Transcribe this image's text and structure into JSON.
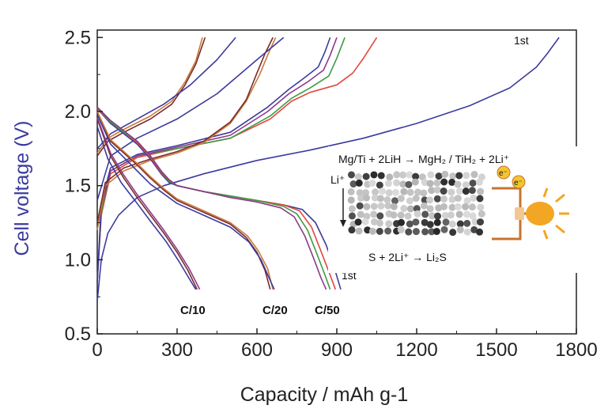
{
  "chart_data": {
    "type": "line",
    "xlabel": "Capacity / mAh g-1",
    "ylabel": "Cell voltage (V)",
    "xlim": [
      0,
      1800
    ],
    "ylim": [
      0.5,
      2.55
    ],
    "x_ticks": [
      "0",
      "300",
      "600",
      "900",
      "1200",
      "1500",
      "1800"
    ],
    "y_ticks": [
      "0.5",
      "1.0",
      "1.5",
      "2.0",
      "2.5"
    ],
    "grid": false,
    "rate_labels": [
      "C/10",
      "C/20",
      "C/50"
    ],
    "first_cycle_labels": [
      "1st",
      "1st"
    ],
    "series": [
      {
        "group": "charge",
        "rate": "1st",
        "color": "#3b3b9e",
        "points": [
          [
            0,
            0.72
          ],
          [
            15,
            1.0
          ],
          [
            40,
            1.18
          ],
          [
            80,
            1.3
          ],
          [
            150,
            1.42
          ],
          [
            250,
            1.5
          ],
          [
            400,
            1.58
          ],
          [
            600,
            1.67
          ],
          [
            800,
            1.74
          ],
          [
            1000,
            1.82
          ],
          [
            1200,
            1.92
          ],
          [
            1400,
            2.04
          ],
          [
            1550,
            2.16
          ],
          [
            1650,
            2.3
          ],
          [
            1690,
            2.39
          ],
          [
            1735,
            2.5
          ]
        ]
      },
      {
        "group": "charge",
        "rate": "C/50",
        "color": "#e2483e",
        "points": [
          [
            0,
            0.85
          ],
          [
            15,
            1.3
          ],
          [
            50,
            1.58
          ],
          [
            150,
            1.69
          ],
          [
            300,
            1.75
          ],
          [
            500,
            1.82
          ],
          [
            650,
            1.95
          ],
          [
            730,
            2.07
          ],
          [
            800,
            2.13
          ],
          [
            900,
            2.18
          ],
          [
            960,
            2.26
          ],
          [
            1000,
            2.36
          ],
          [
            1050,
            2.5
          ]
        ]
      },
      {
        "group": "charge",
        "rate": "C/50",
        "color": "#3e9b45",
        "points": [
          [
            0,
            0.85
          ],
          [
            15,
            1.32
          ],
          [
            50,
            1.6
          ],
          [
            150,
            1.7
          ],
          [
            300,
            1.75
          ],
          [
            500,
            1.82
          ],
          [
            650,
            1.97
          ],
          [
            730,
            2.09
          ],
          [
            800,
            2.16
          ],
          [
            870,
            2.24
          ],
          [
            900,
            2.36
          ],
          [
            930,
            2.5
          ]
        ]
      },
      {
        "group": "charge",
        "rate": "C/50",
        "color": "#8c3a86",
        "points": [
          [
            0,
            0.85
          ],
          [
            15,
            1.35
          ],
          [
            50,
            1.6
          ],
          [
            150,
            1.7
          ],
          [
            300,
            1.76
          ],
          [
            500,
            1.84
          ],
          [
            640,
            2.0
          ],
          [
            720,
            2.12
          ],
          [
            790,
            2.2
          ],
          [
            850,
            2.28
          ],
          [
            875,
            2.38
          ],
          [
            900,
            2.5
          ]
        ]
      },
      {
        "group": "charge",
        "rate": "C/50",
        "color": "#3b3b9e",
        "points": [
          [
            0,
            0.85
          ],
          [
            15,
            1.38
          ],
          [
            50,
            1.62
          ],
          [
            150,
            1.71
          ],
          [
            300,
            1.77
          ],
          [
            500,
            1.86
          ],
          [
            640,
            2.03
          ],
          [
            720,
            2.15
          ],
          [
            780,
            2.23
          ],
          [
            830,
            2.3
          ],
          [
            855,
            2.4
          ],
          [
            875,
            2.5
          ]
        ]
      },
      {
        "group": "charge",
        "rate": "C/20",
        "color": "#c97a3a",
        "points": [
          [
            0,
            1.2
          ],
          [
            30,
            1.5
          ],
          [
            100,
            1.6
          ],
          [
            200,
            1.67
          ],
          [
            300,
            1.72
          ],
          [
            400,
            1.79
          ],
          [
            500,
            1.92
          ],
          [
            560,
            2.07
          ],
          [
            610,
            2.25
          ],
          [
            640,
            2.38
          ],
          [
            670,
            2.5
          ]
        ]
      },
      {
        "group": "charge",
        "rate": "C/20",
        "color": "#7b2b2b",
        "points": [
          [
            0,
            1.25
          ],
          [
            30,
            1.52
          ],
          [
            100,
            1.62
          ],
          [
            200,
            1.68
          ],
          [
            300,
            1.73
          ],
          [
            400,
            1.8
          ],
          [
            500,
            1.93
          ],
          [
            560,
            2.08
          ],
          [
            600,
            2.26
          ],
          [
            630,
            2.39
          ],
          [
            660,
            2.5
          ]
        ]
      },
      {
        "group": "charge",
        "rate": "C/20",
        "color": "#3b3b9e",
        "points": [
          [
            0,
            1.4
          ],
          [
            50,
            1.7
          ],
          [
            150,
            1.82
          ],
          [
            300,
            1.95
          ],
          [
            450,
            2.12
          ],
          [
            600,
            2.35
          ],
          [
            700,
            2.5
          ]
        ]
      },
      {
        "group": "charge",
        "rate": "C/10",
        "color": "#7b2b2b",
        "points": [
          [
            0,
            1.7
          ],
          [
            40,
            1.8
          ],
          [
            100,
            1.86
          ],
          [
            200,
            1.95
          ],
          [
            280,
            2.05
          ],
          [
            330,
            2.18
          ],
          [
            370,
            2.32
          ],
          [
            405,
            2.5
          ]
        ]
      },
      {
        "group": "charge",
        "rate": "C/10",
        "color": "#c97a3a",
        "points": [
          [
            0,
            1.72
          ],
          [
            40,
            1.82
          ],
          [
            100,
            1.88
          ],
          [
            200,
            1.97
          ],
          [
            280,
            2.07
          ],
          [
            330,
            2.2
          ],
          [
            370,
            2.34
          ],
          [
            395,
            2.5
          ]
        ]
      },
      {
        "group": "charge",
        "rate": "C/10",
        "color": "#3b3b9e",
        "points": [
          [
            0,
            1.75
          ],
          [
            50,
            1.85
          ],
          [
            150,
            1.95
          ],
          [
            250,
            2.05
          ],
          [
            350,
            2.18
          ],
          [
            450,
            2.35
          ],
          [
            520,
            2.5
          ]
        ]
      },
      {
        "group": "discharge",
        "rate": "1st",
        "color": "#3b3b9e",
        "points": [
          [
            0,
            2.02
          ],
          [
            50,
            1.92
          ],
          [
            100,
            1.85
          ],
          [
            150,
            1.78
          ],
          [
            200,
            1.68
          ],
          [
            240,
            1.58
          ],
          [
            270,
            1.52
          ],
          [
            300,
            1.5
          ],
          [
            400,
            1.46
          ],
          [
            500,
            1.43
          ],
          [
            600,
            1.4
          ],
          [
            700,
            1.37
          ],
          [
            770,
            1.34
          ],
          [
            820,
            1.25
          ],
          [
            860,
            1.1
          ],
          [
            890,
            0.95
          ],
          [
            915,
            0.8
          ]
        ]
      },
      {
        "group": "discharge",
        "rate": "C/50",
        "color": "#e2483e",
        "points": [
          [
            0,
            2.02
          ],
          [
            50,
            1.93
          ],
          [
            100,
            1.86
          ],
          [
            150,
            1.79
          ],
          [
            200,
            1.69
          ],
          [
            240,
            1.59
          ],
          [
            270,
            1.53
          ],
          [
            300,
            1.5
          ],
          [
            400,
            1.46
          ],
          [
            500,
            1.43
          ],
          [
            600,
            1.4
          ],
          [
            700,
            1.37
          ],
          [
            760,
            1.33
          ],
          [
            805,
            1.22
          ],
          [
            840,
            1.06
          ],
          [
            870,
            0.92
          ],
          [
            895,
            0.8
          ]
        ]
      },
      {
        "group": "discharge",
        "rate": "C/50",
        "color": "#3e9b45",
        "points": [
          [
            0,
            2.03
          ],
          [
            50,
            1.93
          ],
          [
            100,
            1.86
          ],
          [
            150,
            1.8
          ],
          [
            200,
            1.7
          ],
          [
            240,
            1.6
          ],
          [
            270,
            1.53
          ],
          [
            300,
            1.5
          ],
          [
            400,
            1.46
          ],
          [
            500,
            1.43
          ],
          [
            600,
            1.4
          ],
          [
            700,
            1.36
          ],
          [
            750,
            1.31
          ],
          [
            790,
            1.2
          ],
          [
            825,
            1.04
          ],
          [
            855,
            0.9
          ],
          [
            875,
            0.8
          ]
        ]
      },
      {
        "group": "discharge",
        "rate": "C/50",
        "color": "#8c3a86",
        "points": [
          [
            0,
            2.03
          ],
          [
            50,
            1.94
          ],
          [
            100,
            1.87
          ],
          [
            150,
            1.8
          ],
          [
            200,
            1.7
          ],
          [
            240,
            1.6
          ],
          [
            270,
            1.54
          ],
          [
            300,
            1.5
          ],
          [
            400,
            1.46
          ],
          [
            500,
            1.42
          ],
          [
            600,
            1.39
          ],
          [
            690,
            1.35
          ],
          [
            740,
            1.29
          ],
          [
            780,
            1.16
          ],
          [
            815,
            1.0
          ],
          [
            840,
            0.88
          ],
          [
            860,
            0.8
          ]
        ]
      },
      {
        "group": "discharge",
        "rate": "C/20",
        "color": "#7b2b2b",
        "points": [
          [
            0,
            2.0
          ],
          [
            50,
            1.8
          ],
          [
            100,
            1.72
          ],
          [
            150,
            1.64
          ],
          [
            200,
            1.55
          ],
          [
            250,
            1.47
          ],
          [
            300,
            1.4
          ],
          [
            400,
            1.32
          ],
          [
            500,
            1.24
          ],
          [
            560,
            1.15
          ],
          [
            600,
            1.05
          ],
          [
            630,
            0.93
          ],
          [
            650,
            0.8
          ]
        ]
      },
      {
        "group": "discharge",
        "rate": "C/20",
        "color": "#c97a3a",
        "points": [
          [
            0,
            2.0
          ],
          [
            50,
            1.81
          ],
          [
            100,
            1.73
          ],
          [
            150,
            1.65
          ],
          [
            200,
            1.56
          ],
          [
            250,
            1.48
          ],
          [
            300,
            1.41
          ],
          [
            400,
            1.33
          ],
          [
            500,
            1.25
          ],
          [
            565,
            1.16
          ],
          [
            605,
            1.06
          ],
          [
            640,
            0.94
          ],
          [
            660,
            0.8
          ]
        ]
      },
      {
        "group": "discharge",
        "rate": "C/20",
        "color": "#3b3b9e",
        "points": [
          [
            0,
            1.98
          ],
          [
            50,
            1.78
          ],
          [
            100,
            1.69
          ],
          [
            150,
            1.6
          ],
          [
            200,
            1.51
          ],
          [
            300,
            1.38
          ],
          [
            400,
            1.3
          ],
          [
            500,
            1.22
          ],
          [
            570,
            1.12
          ],
          [
            615,
            1.0
          ],
          [
            645,
            0.88
          ],
          [
            665,
            0.8
          ]
        ]
      },
      {
        "group": "discharge",
        "rate": "C/10",
        "color": "#7b2b2b",
        "points": [
          [
            0,
            1.95
          ],
          [
            50,
            1.7
          ],
          [
            100,
            1.55
          ],
          [
            150,
            1.42
          ],
          [
            200,
            1.3
          ],
          [
            250,
            1.18
          ],
          [
            300,
            1.05
          ],
          [
            340,
            0.93
          ],
          [
            375,
            0.8
          ]
        ]
      },
      {
        "group": "discharge",
        "rate": "C/10",
        "color": "#8c3a86",
        "points": [
          [
            0,
            1.96
          ],
          [
            50,
            1.72
          ],
          [
            100,
            1.57
          ],
          [
            150,
            1.44
          ],
          [
            200,
            1.32
          ],
          [
            250,
            1.2
          ],
          [
            300,
            1.07
          ],
          [
            345,
            0.94
          ],
          [
            385,
            0.8
          ]
        ]
      },
      {
        "group": "discharge",
        "rate": "C/10",
        "color": "#3b3b9e",
        "points": [
          [
            0,
            1.9
          ],
          [
            40,
            1.68
          ],
          [
            90,
            1.52
          ],
          [
            150,
            1.38
          ],
          [
            200,
            1.26
          ],
          [
            260,
            1.12
          ],
          [
            310,
            0.98
          ],
          [
            350,
            0.86
          ],
          [
            370,
            0.8
          ]
        ]
      }
    ]
  },
  "inset": {
    "equation_top": "Mg/Ti + 2LiH → MgH₂ / TiH₂ + 2Li⁺",
    "equation_bottom": "S + 2Li⁺ → Li₂S",
    "ion_label": "Li⁺",
    "electron_label": "e⁻",
    "colors": {
      "wire": "#c8732d",
      "bulb": "#f2a623",
      "electron": "#f2c531"
    }
  }
}
